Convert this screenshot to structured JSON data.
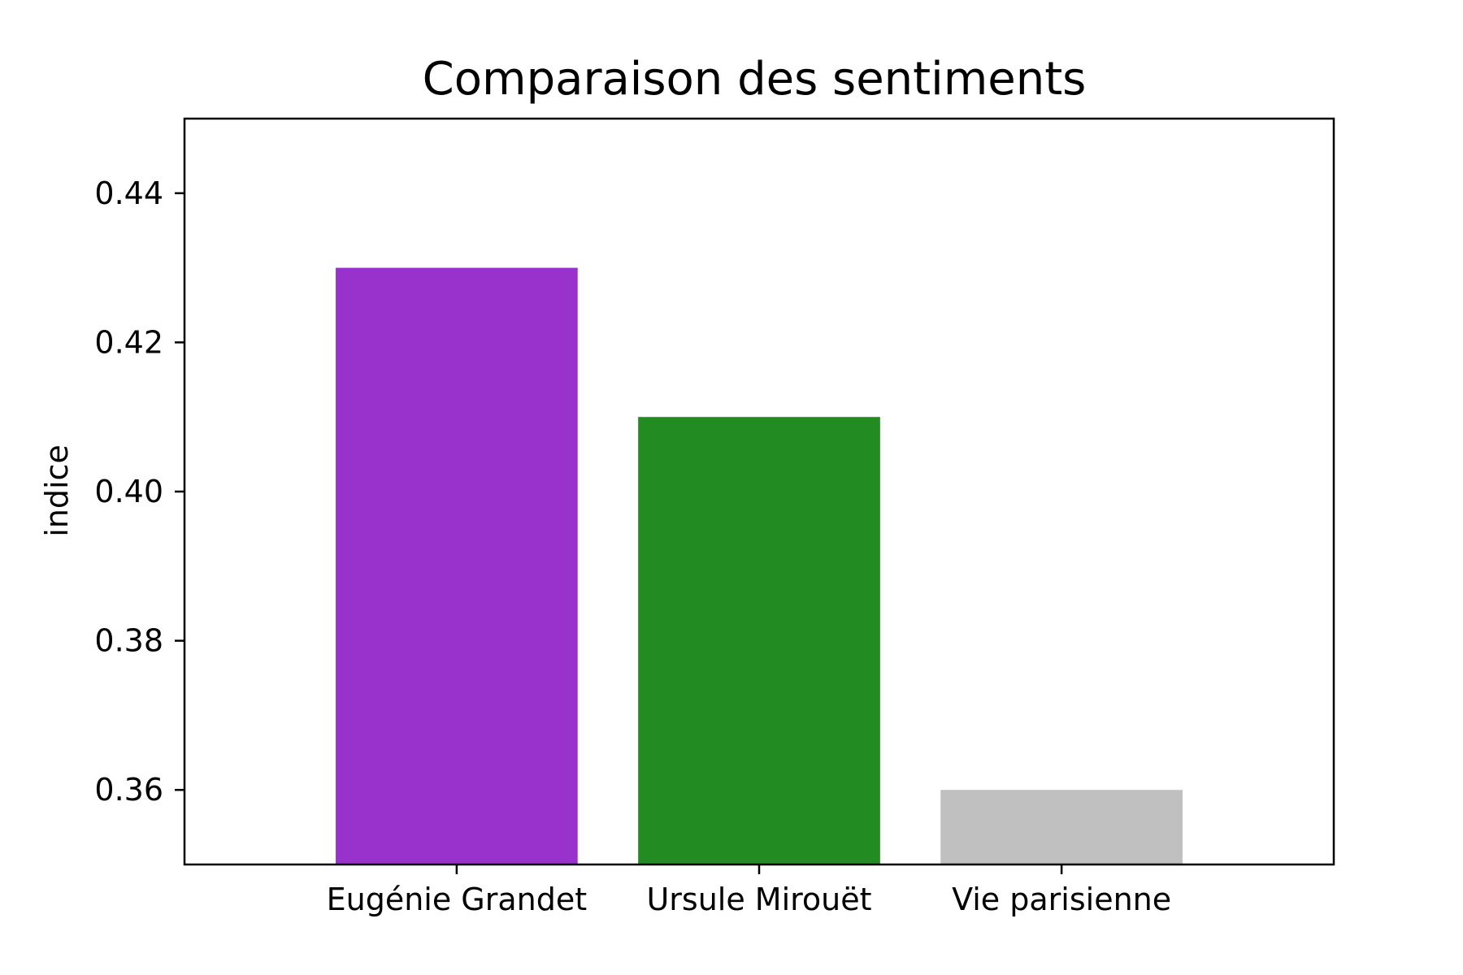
{
  "chart_data": {
    "type": "bar",
    "title": "Comparaison des sentiments",
    "xlabel": "",
    "ylabel": "indice",
    "categories": [
      "Eugénie Grandet",
      "Ursule Mirouët",
      "Vie parisienne"
    ],
    "values": [
      0.43,
      0.41,
      0.36
    ],
    "colors": [
      "#9932CC",
      "#228B22",
      "#C0C0C0"
    ],
    "ylim": [
      0.35,
      0.45
    ],
    "yticks": [
      0.36,
      0.38,
      0.4,
      0.42,
      0.44
    ],
    "ytick_labels": [
      "0.36",
      "0.38",
      "0.40",
      "0.42",
      "0.44"
    ],
    "grid": false,
    "legend": "none"
  }
}
